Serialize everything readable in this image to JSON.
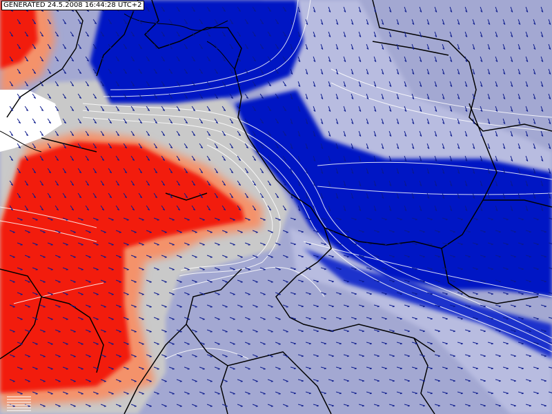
{
  "header": {
    "generated_text": "GENERATED 24.5.2008 16:44:28 UTC+2"
  },
  "map": {
    "kind": "weather-forecast-field-map",
    "colors": {
      "background": "#a3a8d2",
      "strong_positive": "#f21a0f",
      "moderate_positive": "#f4926b",
      "neutral": "#c9c9c9",
      "strong_negative": "#0016c4",
      "wind_arrow": "#0b1a8c",
      "contour": "#ffffff",
      "border": "#000000"
    },
    "wind_arrows": "blue arrows showing flow direction",
    "contours": "white isolines"
  }
}
